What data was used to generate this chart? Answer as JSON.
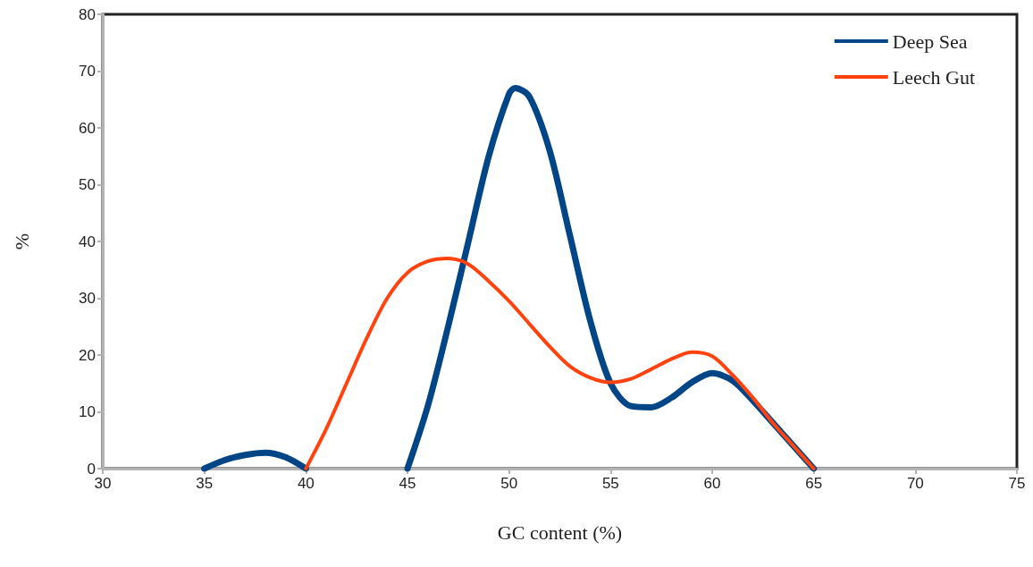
{
  "chart_data": {
    "type": "line",
    "xlabel": "GC content (%)",
    "ylabel": "%",
    "xlim": [
      30,
      75
    ],
    "xticks": [
      30,
      35,
      40,
      45,
      50,
      55,
      60,
      65,
      70,
      75
    ],
    "ylim": [
      0,
      80
    ],
    "yticks": [
      0,
      10,
      20,
      30,
      40,
      50,
      60,
      70,
      80
    ],
    "grid": false,
    "legend": "top right",
    "marker": "none",
    "line_style": "solid",
    "series": [
      {
        "name": "Deep Sea",
        "color": "#004586",
        "x": [
          35,
          36,
          37,
          38,
          39,
          40,
          42.5,
          45,
          46,
          47,
          48,
          49,
          50,
          50.3,
          51,
          52,
          53,
          54,
          55,
          56,
          57,
          58,
          59,
          60,
          61,
          62,
          63,
          64,
          65
        ],
        "values": [
          0,
          1.5,
          2.4,
          2.8,
          2,
          0,
          null,
          0,
          11,
          25,
          40,
          55,
          66,
          67,
          65.5,
          56,
          41,
          26,
          15,
          11,
          10.8,
          12.5,
          15.2,
          16.8,
          15.5,
          12,
          8,
          4,
          0
        ]
      },
      {
        "name": "Leech Gut",
        "color": "#ff420e",
        "x": [
          40,
          41,
          42,
          43,
          44,
          45,
          46,
          47,
          48,
          49,
          50,
          51,
          52,
          53,
          54,
          55,
          56,
          57,
          58,
          59,
          60,
          61,
          62,
          63,
          64,
          65
        ],
        "values": [
          0,
          7,
          15,
          23,
          30,
          34.5,
          36.5,
          37,
          36,
          33,
          29.5,
          25.5,
          21.5,
          18,
          16,
          15.2,
          15.8,
          17.5,
          19.3,
          20.5,
          19.8,
          16.5,
          12.5,
          8,
          4,
          0
        ]
      }
    ]
  }
}
